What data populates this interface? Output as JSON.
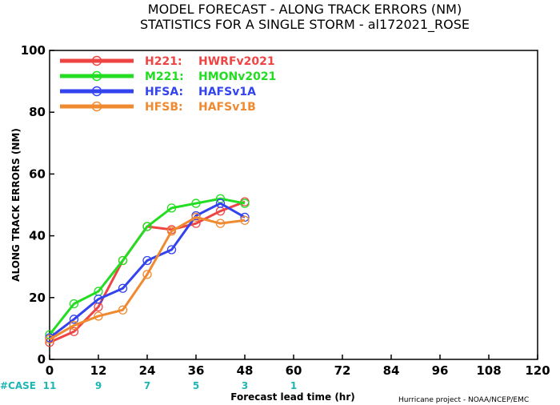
{
  "chart_data": {
    "type": "line",
    "title": "MODEL FORECAST - ALONG TRACK ERRORS (NM)",
    "subtitle": "STATISTICS FOR A SINGLE STORM - al172021_ROSE",
    "xlabel": "Forecast lead time (hr)",
    "ylabel": "ALONG TRACK ERRORS (NM)",
    "xlim": [
      0,
      120
    ],
    "ylim": [
      0,
      100
    ],
    "xticks": [
      "0",
      "12",
      "24",
      "36",
      "48",
      "60",
      "72",
      "84",
      "96",
      "108",
      "120"
    ],
    "yticks": [
      "0",
      "20",
      "40",
      "60",
      "80",
      "100"
    ],
    "grid": false,
    "legend_position": "top-left",
    "case_label": "#CASE",
    "cases": [
      {
        "x": 0,
        "n": "11"
      },
      {
        "x": 12,
        "n": "9"
      },
      {
        "x": 24,
        "n": "7"
      },
      {
        "x": 36,
        "n": "5"
      },
      {
        "x": 48,
        "n": "3"
      },
      {
        "x": 60,
        "n": "1"
      }
    ],
    "credit": "Hurricane project - NOAA/NCEP/EMC",
    "series": [
      {
        "name": "H221:",
        "desc": "HWRFv2021",
        "color": "#ee4444",
        "x": [
          0,
          6,
          12,
          18,
          24,
          30,
          36,
          42,
          48
        ],
        "y": [
          5.5,
          9,
          17,
          32,
          43,
          42,
          44,
          48,
          51
        ]
      },
      {
        "name": "M221:",
        "desc": "HMONv2021",
        "color": "#22dd22",
        "x": [
          0,
          6,
          12,
          18,
          24,
          30,
          36,
          42,
          48
        ],
        "y": [
          8,
          18,
          22,
          32,
          43,
          49,
          50.5,
          52,
          50.5
        ]
      },
      {
        "name": "HFSA:",
        "desc": "HAFSv1A",
        "color": "#3344ee",
        "x": [
          0,
          6,
          12,
          18,
          24,
          30,
          36,
          42,
          48
        ],
        "y": [
          7,
          13,
          19.5,
          23,
          32,
          35.5,
          46.5,
          50.5,
          46
        ]
      },
      {
        "name": "HFSB:",
        "desc": "HAFSv1B",
        "color": "#f08a30",
        "x": [
          0,
          6,
          12,
          18,
          24,
          30,
          36,
          42,
          48
        ],
        "y": [
          6.5,
          11,
          14,
          16,
          27.5,
          41.5,
          46,
          44,
          45
        ]
      }
    ]
  }
}
